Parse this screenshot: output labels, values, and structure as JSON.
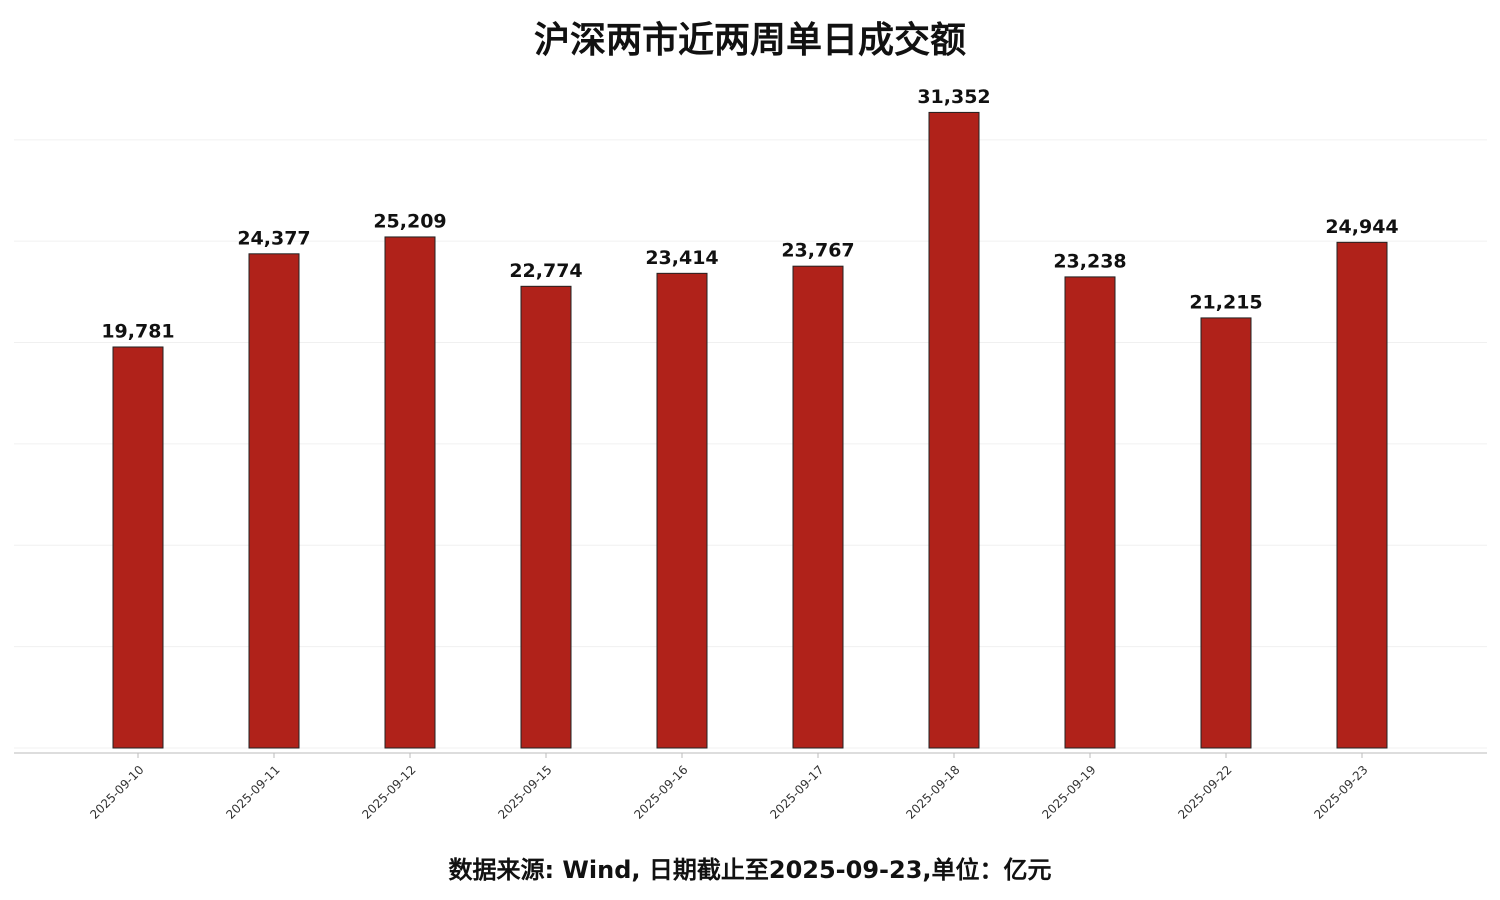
{
  "chart_data": {
    "type": "bar",
    "title": "沪深两市近两周单日成交额",
    "note": "数据来源: Wind, 日期截止至2025-09-23,单位：亿元",
    "categories": [
      "2025-09-10",
      "2025-09-11",
      "2025-09-12",
      "2025-09-15",
      "2025-09-16",
      "2025-09-17",
      "2025-09-18",
      "2025-09-19",
      "2025-09-22",
      "2025-09-23"
    ],
    "values": [
      19781,
      24377,
      25209,
      22774,
      23414,
      23767,
      31352,
      23238,
      21215,
      24944
    ],
    "value_labels": [
      "19,781",
      "24,377",
      "25,209",
      "22,774",
      "23,414",
      "23,767",
      "31,352",
      "23,238",
      "21,215",
      "24,944"
    ],
    "color": "#b0221a",
    "ylim": [
      0,
      33000
    ],
    "yticks": [
      0,
      5000,
      10000,
      15000,
      20000,
      25000,
      30000
    ],
    "grid": true
  }
}
